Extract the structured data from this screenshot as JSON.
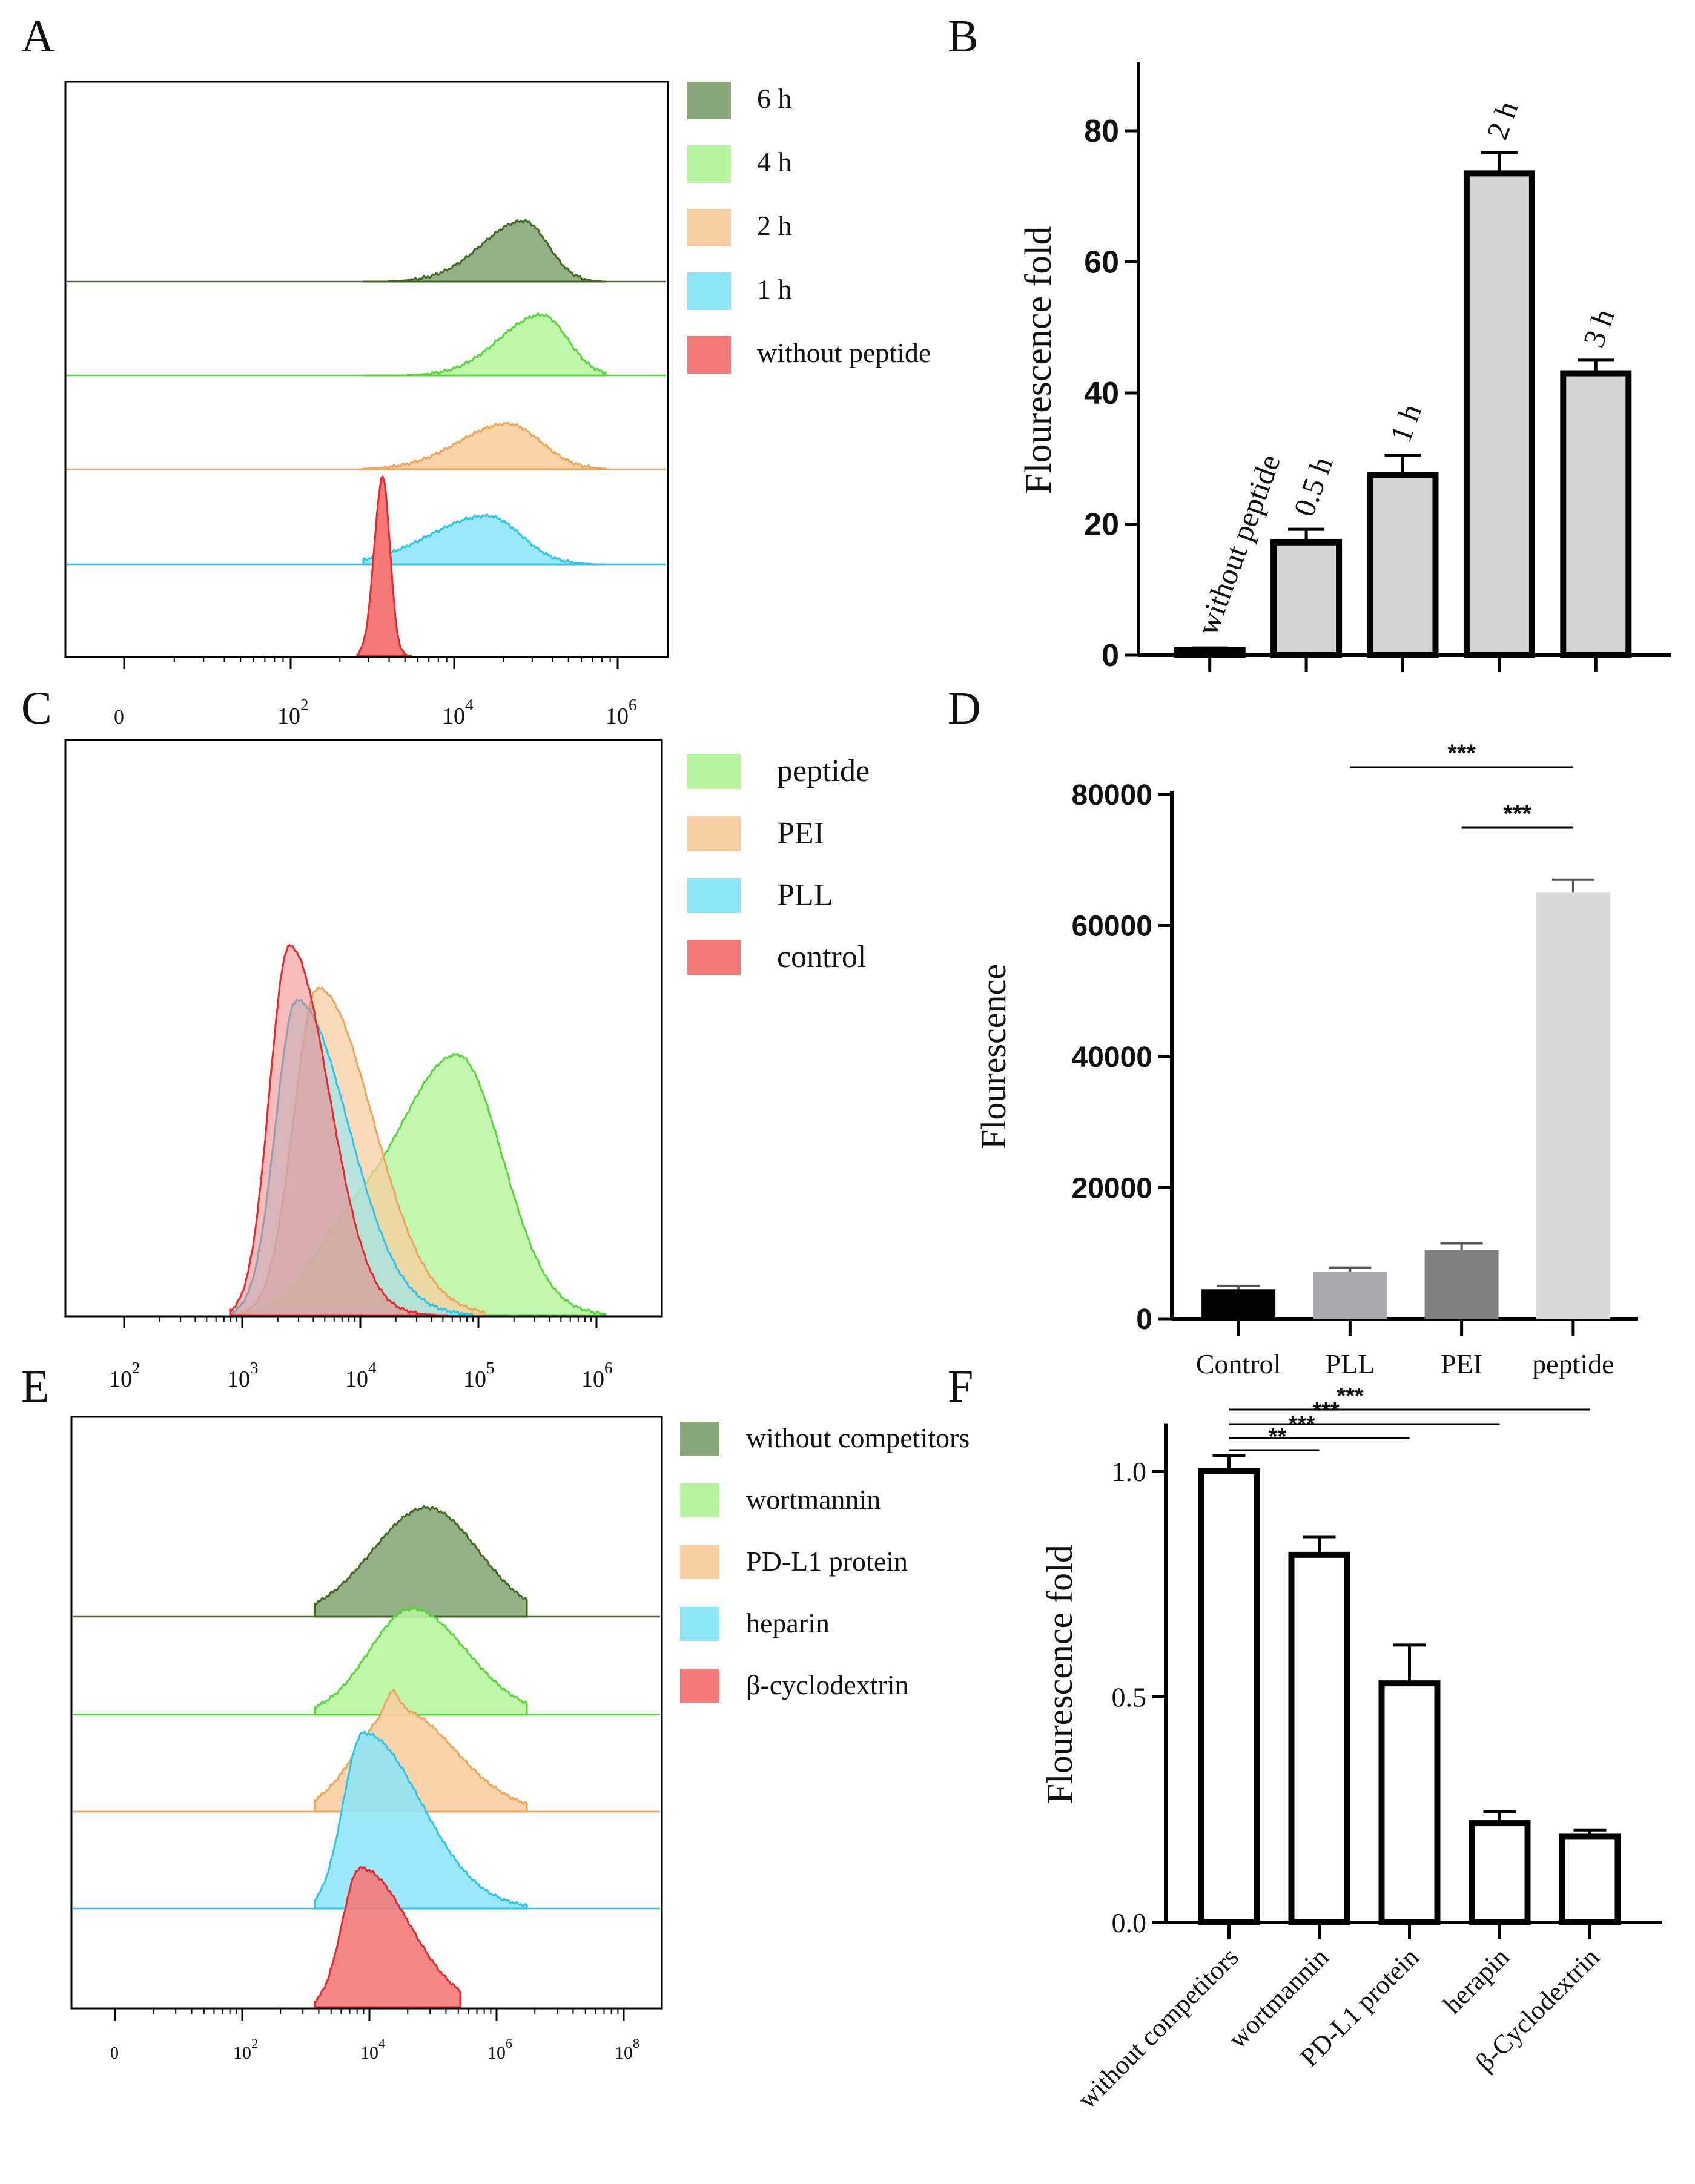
{
  "colors": {
    "6h": "#8aa77a",
    "6h_line": "#3f6b1e",
    "4h": "#b9f5a0",
    "4h_line": "#56d63a",
    "2h": "#f8cfa2",
    "2h_line": "#f0a556",
    "1h": "#8fe6f7",
    "1h_line": "#2ec3ea",
    "ctrl": "#f47a7a",
    "ctrl_line": "#e42a2a",
    "bar_grey": "#d4d4d4",
    "bar_black": "#000000",
    "bar_mid": "#a9a9ad",
    "bar_dark": "#808080",
    "bar_light": "#d9d9d9"
  },
  "panels": {
    "A": {
      "letter": "A",
      "legend": [
        "6 h",
        "4 h",
        "2 h",
        "1 h",
        "without peptide"
      ],
      "xticks": [
        "0",
        "10",
        "10",
        "10"
      ],
      "xtick_exps": [
        "",
        "2",
        "4",
        "6"
      ]
    },
    "C": {
      "letter": "C",
      "legend": [
        "peptide",
        "PEI",
        "PLL",
        "control"
      ],
      "xticks": [
        "10",
        "10",
        "10",
        "10",
        "10"
      ],
      "xtick_exps": [
        "2",
        "3",
        "4",
        "5",
        "6"
      ]
    },
    "E": {
      "letter": "E",
      "legend": [
        "without competitors",
        "wortmannin",
        "PD-L1 protein",
        "heparin",
        "β-cyclodextrin"
      ],
      "xticks": [
        "0",
        "10",
        "10",
        "10",
        "10"
      ],
      "xtick_exps": [
        "",
        "2",
        "4",
        "6",
        "8"
      ]
    },
    "B": {
      "letter": "B"
    },
    "D": {
      "letter": "D"
    },
    "F": {
      "letter": "F"
    }
  },
  "chart_data": [
    {
      "panel": "A",
      "type": "area",
      "title": "",
      "xlabel": "",
      "ylabel": "",
      "xscale": "log (0, 10^2, 10^4, 10^6)",
      "series": [
        {
          "name": "6 h",
          "peak_log10": 4.7
        },
        {
          "name": "4 h",
          "peak_log10": 5.0
        },
        {
          "name": "2 h",
          "peak_log10": 4.6
        },
        {
          "name": "1 h",
          "peak_log10": 4.4
        },
        {
          "name": "without peptide",
          "peak_log10": 3.1
        }
      ]
    },
    {
      "panel": "B",
      "type": "bar",
      "title": "",
      "xlabel": "",
      "ylabel": "Flourescence fold",
      "categories": [
        "without peptide",
        "0.5 h",
        "1 h",
        "2 h",
        "3 h"
      ],
      "values": [
        0.8,
        17.2,
        27.5,
        73.5,
        43.0
      ],
      "errors": [
        0.3,
        2.0,
        3.0,
        3.2,
        2.0
      ],
      "ylim": [
        0,
        90
      ],
      "yticks": [
        "0",
        "20",
        "40",
        "60",
        "80"
      ]
    },
    {
      "panel": "C",
      "type": "area",
      "title": "",
      "xlabel": "",
      "ylabel": "",
      "xscale": "log (10^2 – 10^6)",
      "series": [
        {
          "name": "peptide",
          "peak_log10": 4.8
        },
        {
          "name": "PEI",
          "peak_log10": 3.6
        },
        {
          "name": "PLL",
          "peak_log10": 3.45
        },
        {
          "name": "control",
          "peak_log10": 3.35
        }
      ]
    },
    {
      "panel": "D",
      "type": "bar",
      "title": "",
      "xlabel": "",
      "ylabel": "Flourescence",
      "categories": [
        "Control",
        "PLL",
        "PEI",
        "peptide"
      ],
      "values": [
        4500,
        7200,
        10500,
        65000
      ],
      "errors": [
        500,
        600,
        1000,
        2000
      ],
      "ylim": [
        0,
        80000
      ],
      "yticks": [
        "0",
        "20000",
        "40000",
        "60000",
        "80000"
      ],
      "significance": [
        {
          "from": "PLL",
          "to": "peptide",
          "label": "***"
        },
        {
          "from": "PEI",
          "to": "peptide",
          "label": "***"
        }
      ]
    },
    {
      "panel": "E",
      "type": "area",
      "title": "",
      "xlabel": "",
      "ylabel": "",
      "xscale": "log (0, 10^2, 10^4, 10^6, 10^8)",
      "series": [
        {
          "name": "without competitors",
          "peak_log10": 4.6
        },
        {
          "name": "wortmannin",
          "peak_log10": 4.4
        },
        {
          "name": "PD-L1 protein",
          "peak_log10": 4.3
        },
        {
          "name": "heparin",
          "peak_log10": 3.9
        },
        {
          "name": "β-cyclodextrin",
          "peak_log10": 3.9
        }
      ]
    },
    {
      "panel": "F",
      "type": "bar",
      "title": "",
      "xlabel": "",
      "ylabel": "Flourescence fold",
      "categories": [
        "without competitors",
        "wortmannin",
        "PD-L1 protein",
        "herapin",
        "β-Cyclodextrin"
      ],
      "values": [
        1.0,
        0.815,
        0.53,
        0.22,
        0.19
      ],
      "errors": [
        0.035,
        0.04,
        0.085,
        0.025,
        0.015
      ],
      "ylim": [
        0,
        1.1
      ],
      "yticks": [
        "0.0",
        "0.5",
        "1.0"
      ],
      "significance": [
        {
          "from": "without competitors",
          "to": "wortmannin",
          "label": "**"
        },
        {
          "from": "without competitors",
          "to": "PD-L1 protein",
          "label": "***"
        },
        {
          "from": "without competitors",
          "to": "herapin",
          "label": "***"
        },
        {
          "from": "without competitors",
          "to": "β-Cyclodextrin",
          "label": "***"
        }
      ]
    }
  ]
}
